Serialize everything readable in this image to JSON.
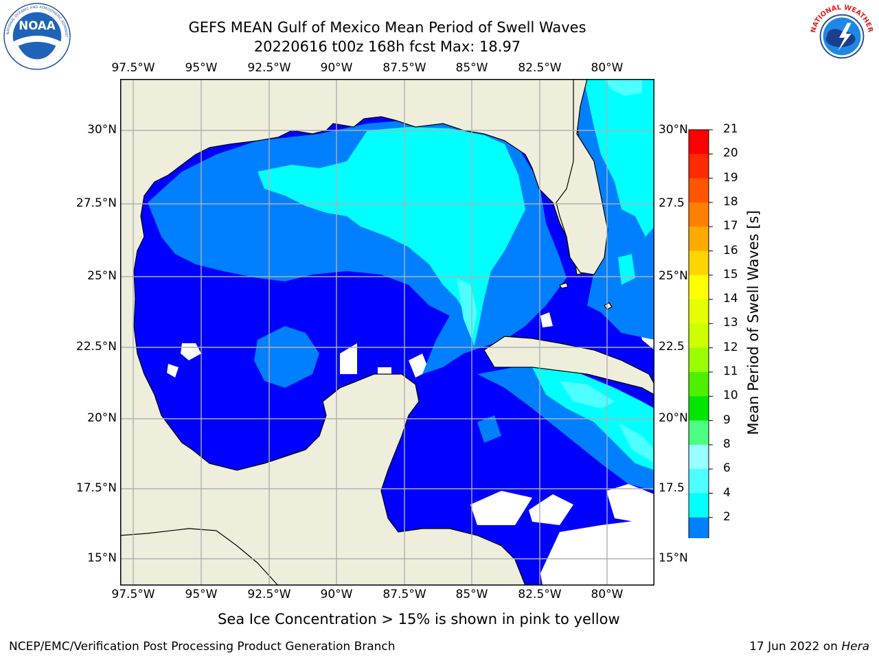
{
  "header": {
    "title_line1": "GEFS MEAN Gulf of Mexico Mean Period of Swell Waves",
    "title_line2": "20220616 t00z 168h fcst   Max: 18.97"
  },
  "logos": {
    "left": "NOAA",
    "left_ring": "NATIONAL OCEANIC AND ATMOSPHERIC ADMINISTRATION · U.S. DEPARTMENT OF COMMERCE",
    "right_ring": "NATIONAL WEATHER SERVICE"
  },
  "map": {
    "lon_labels": [
      "97.5°W",
      "95°W",
      "92.5°W",
      "90°W",
      "87.5°W",
      "85°W",
      "82.5°W",
      "80°W"
    ],
    "lat_labels_left": [
      "30°N",
      "27.5°N",
      "25°N",
      "22.5°N",
      "20°N",
      "17.5°N",
      "15°N"
    ],
    "lat_labels_right": [
      "30°N",
      "27.5",
      "25°N",
      "22.5",
      "20°N",
      "17.5",
      "15°N"
    ],
    "colors": {
      "land": "#efeedc",
      "coast": "#000000",
      "grid": "#b0b0b0",
      "missing": "#ffffff"
    }
  },
  "colorbar": {
    "title": "Mean Period of Swell Waves [s]",
    "ticks": [
      "21",
      "20",
      "19",
      "18",
      "17",
      "16",
      "15",
      "14",
      "13",
      "12",
      "11",
      "10",
      "9",
      "8",
      "6",
      "4",
      "2"
    ],
    "bands_top_to_bottom": [
      "#ff0000",
      "#ff2a00",
      "#ff5500",
      "#ff8000",
      "#ffaa00",
      "#ffd500",
      "#ffff00",
      "#e6ff00",
      "#ccff00",
      "#99ff00",
      "#4df000",
      "#00e600",
      "#4dff80",
      "#99ffff",
      "#4dffff",
      "#00ffff",
      "#0080ff"
    ],
    "under_color": "#0000ff"
  },
  "footer": {
    "note": "Sea Ice Concentration > 15% is shown in pink to yellow",
    "credit": "NCEP/EMC/Verification Post Processing Product Generation Branch",
    "date_prefix": "17 Jun 2022 on ",
    "date_host": "Hera"
  }
}
